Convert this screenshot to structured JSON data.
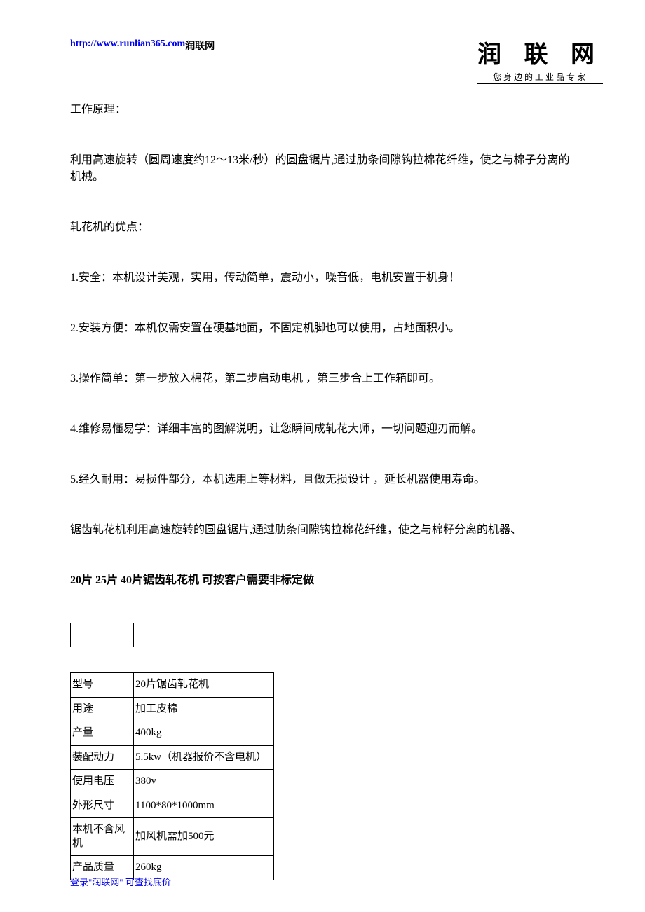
{
  "header": {
    "url": "http://www.runlian365.com",
    "site_name": " 润联网"
  },
  "logo": {
    "main": "润 联 网",
    "sub": "您身边的工业品专家"
  },
  "sections": {
    "title1": "工作原理：",
    "para1": "利用高速旋转（圆周速度约12～13米/秒）的圆盘锯片,通过肋条间隙钩拉棉花纤维，使之与棉子分离的机械。",
    "title2": "轧花机的优点：",
    "p1": "1.安全：本机设计美观，实用，传动简单，震动小，噪音低，电机安置于机身！",
    "p2": "2.安装方便：本机仅需安置在硬基地面，不固定机脚也可以使用，占地面积小。",
    "p3": "3.操作简单：第一步放入棉花，第二步启动电机 ，第三步合上工作箱即可。",
    "p4": "4.维修易懂易学：详细丰富的图解说明，让您瞬间成轧花大师，一切问题迎刃而解。",
    "p5": "5.经久耐用：易损件部分，本机选用上等材料，且做无损设计 ，延长机器使用寿命。",
    "p6": "锯齿轧花机利用高速旋转的圆盘锯片,通过肋条间隙钩拉棉花纤维，使之与棉籽分离的机器、",
    "p7": "20片 25片 40片锯齿轧花机 可按客户需要非标定做"
  },
  "spec_table": {
    "rows": [
      [
        "型号",
        "20片锯齿轧花机"
      ],
      [
        "用途",
        "加工皮棉"
      ],
      [
        "产量",
        "400kg"
      ],
      [
        "装配动力",
        "5.5kw（机器报价不含电机）"
      ],
      [
        "使用电压",
        "380v"
      ],
      [
        "外形尺寸",
        "1100*80*1000mm"
      ],
      [
        "本机不含风机",
        "加风机需加500元"
      ],
      [
        "产品质量",
        "260kg"
      ]
    ]
  },
  "footer": {
    "text": "登录\"润联网\" 可查找底价"
  },
  "colors": {
    "link": "#0000ee",
    "text": "#000000",
    "background": "#ffffff",
    "border": "#000000"
  }
}
